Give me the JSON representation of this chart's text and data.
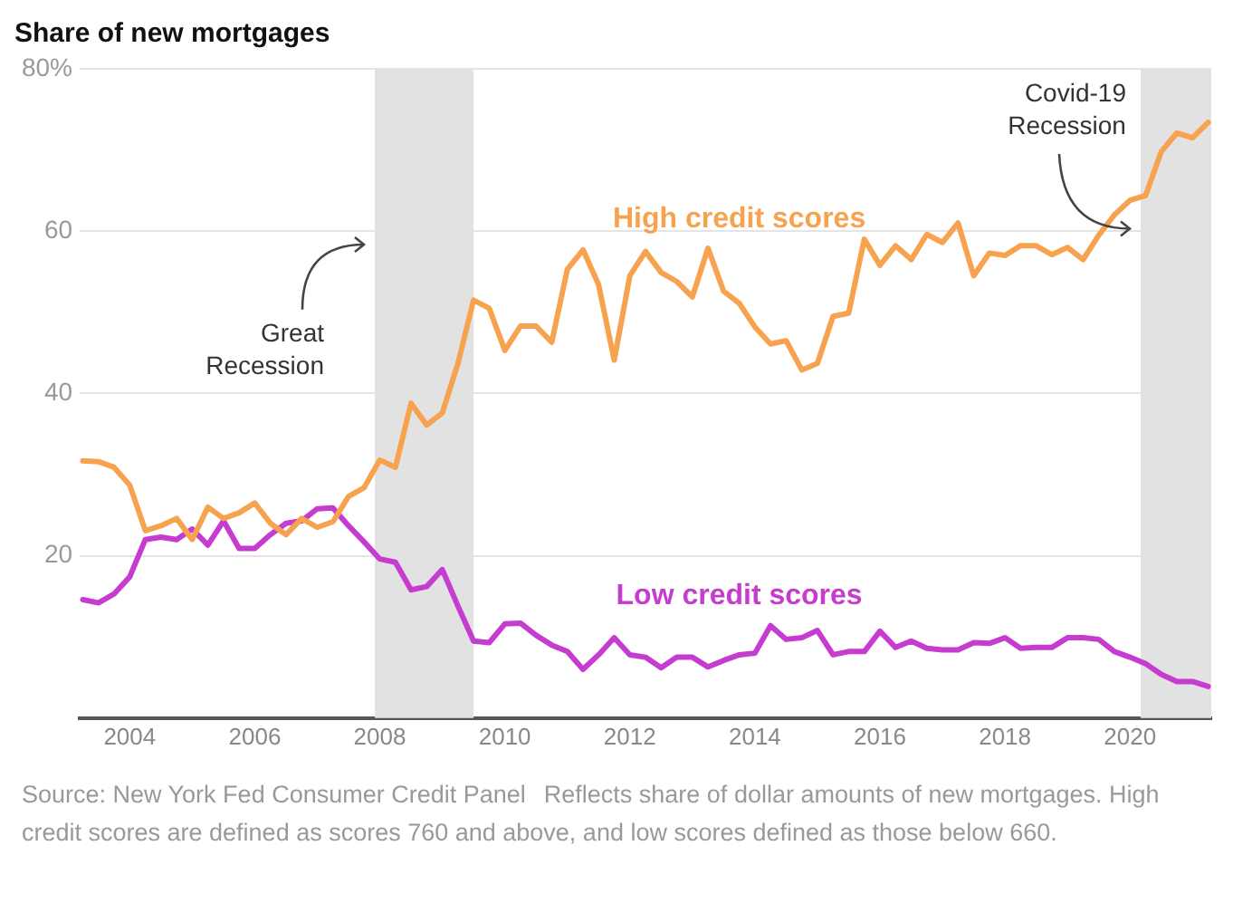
{
  "chart_data": {
    "type": "line",
    "title": "Share of new mortgages",
    "x": [
      2003.25,
      2003.5,
      2003.75,
      2004,
      2004.25,
      2004.5,
      2004.75,
      2005,
      2005.25,
      2005.5,
      2005.75,
      2006,
      2006.25,
      2006.5,
      2006.75,
      2007,
      2007.25,
      2007.5,
      2007.75,
      2008,
      2008.25,
      2008.5,
      2008.75,
      2009,
      2009.25,
      2009.5,
      2009.75,
      2010,
      2010.25,
      2010.5,
      2010.75,
      2011,
      2011.25,
      2011.5,
      2011.75,
      2012,
      2012.25,
      2012.5,
      2012.75,
      2013,
      2013.25,
      2013.5,
      2013.75,
      2014,
      2014.25,
      2014.5,
      2014.75,
      2015,
      2015.25,
      2015.5,
      2015.75,
      2016,
      2016.25,
      2016.5,
      2016.75,
      2017,
      2017.25,
      2017.5,
      2017.75,
      2018,
      2018.25,
      2018.5,
      2018.75,
      2019,
      2019.25,
      2019.5,
      2019.75,
      2020,
      2020.25,
      2020.5,
      2020.75,
      2021,
      2021.25
    ],
    "series": [
      {
        "name": "High credit scores",
        "color": "#f7a24f",
        "values": [
          31.7,
          31.6,
          30.9,
          28.7,
          23.1,
          23.7,
          24.6,
          22.0,
          26.0,
          24.6,
          25.3,
          26.5,
          24.0,
          22.6,
          24.6,
          23.5,
          24.2,
          27.3,
          28.4,
          31.8,
          30.9,
          38.8,
          36.1,
          37.6,
          43.7,
          51.5,
          50.5,
          45.3,
          48.3,
          48.3,
          46.3,
          55.3,
          57.7,
          53.4,
          44.1,
          54.5,
          57.5,
          54.9,
          53.8,
          51.9,
          57.9,
          52.6,
          51.1,
          48.2,
          46.1,
          46.5,
          42.9,
          43.7,
          49.5,
          49.9,
          59.0,
          55.8,
          58.2,
          56.5,
          59.6,
          58.6,
          61.0,
          54.5,
          57.3,
          57.0,
          58.2,
          58.2,
          57.1,
          58.0,
          56.5,
          59.5,
          62.0,
          63.8,
          64.4,
          69.8,
          72.1,
          71.5,
          73.4
        ]
      },
      {
        "name": "Low credit scores",
        "color": "#c63bd0",
        "values": [
          14.6,
          14.2,
          15.3,
          17.4,
          22.0,
          22.3,
          22.0,
          23.3,
          21.3,
          24.3,
          20.9,
          20.9,
          22.6,
          24.0,
          24.3,
          25.8,
          25.9,
          23.7,
          21.7,
          19.6,
          19.2,
          15.8,
          16.2,
          18.3,
          13.8,
          9.5,
          9.3,
          11.6,
          11.7,
          10.2,
          9.0,
          8.2,
          6.0,
          7.8,
          9.9,
          7.8,
          7.5,
          6.2,
          7.5,
          7.5,
          6.3,
          7.1,
          7.8,
          8.0,
          11.4,
          9.7,
          9.9,
          10.8,
          7.8,
          8.2,
          8.2,
          10.7,
          8.7,
          9.5,
          8.6,
          8.4,
          8.4,
          9.3,
          9.2,
          9.9,
          8.6,
          8.7,
          8.7,
          9.9,
          9.9,
          9.7,
          8.2,
          7.5,
          6.7,
          5.4,
          4.5,
          4.5,
          3.9
        ]
      }
    ],
    "xlim": [
      2003.2,
      2021.3
    ],
    "xticks": [
      2004,
      2006,
      2008,
      2010,
      2012,
      2014,
      2016,
      2018,
      2020
    ],
    "ylim": [
      0,
      80
    ],
    "yticks": [
      20,
      40,
      60,
      {
        "value": 80,
        "label": "80%"
      }
    ],
    "grid": "y",
    "legend": false,
    "marker": "none",
    "line_style": "solid",
    "bands": [
      {
        "axis": "x",
        "from": 2007.92,
        "to": 2009.5,
        "label": "Great Recession",
        "color": "#e2e2e2"
      },
      {
        "axis": "x",
        "from": 2020.17,
        "to": 2021.3,
        "label": "Covid-19 Recession",
        "color": "#e2e2e2"
      }
    ],
    "annotations": [
      "Source: New York Fed Consumer Credit Panel",
      "Reflects share of dollar amounts of new mortgages. High credit scores are defined as scores 760 and above, and low scores defined as those below 660."
    ]
  }
}
